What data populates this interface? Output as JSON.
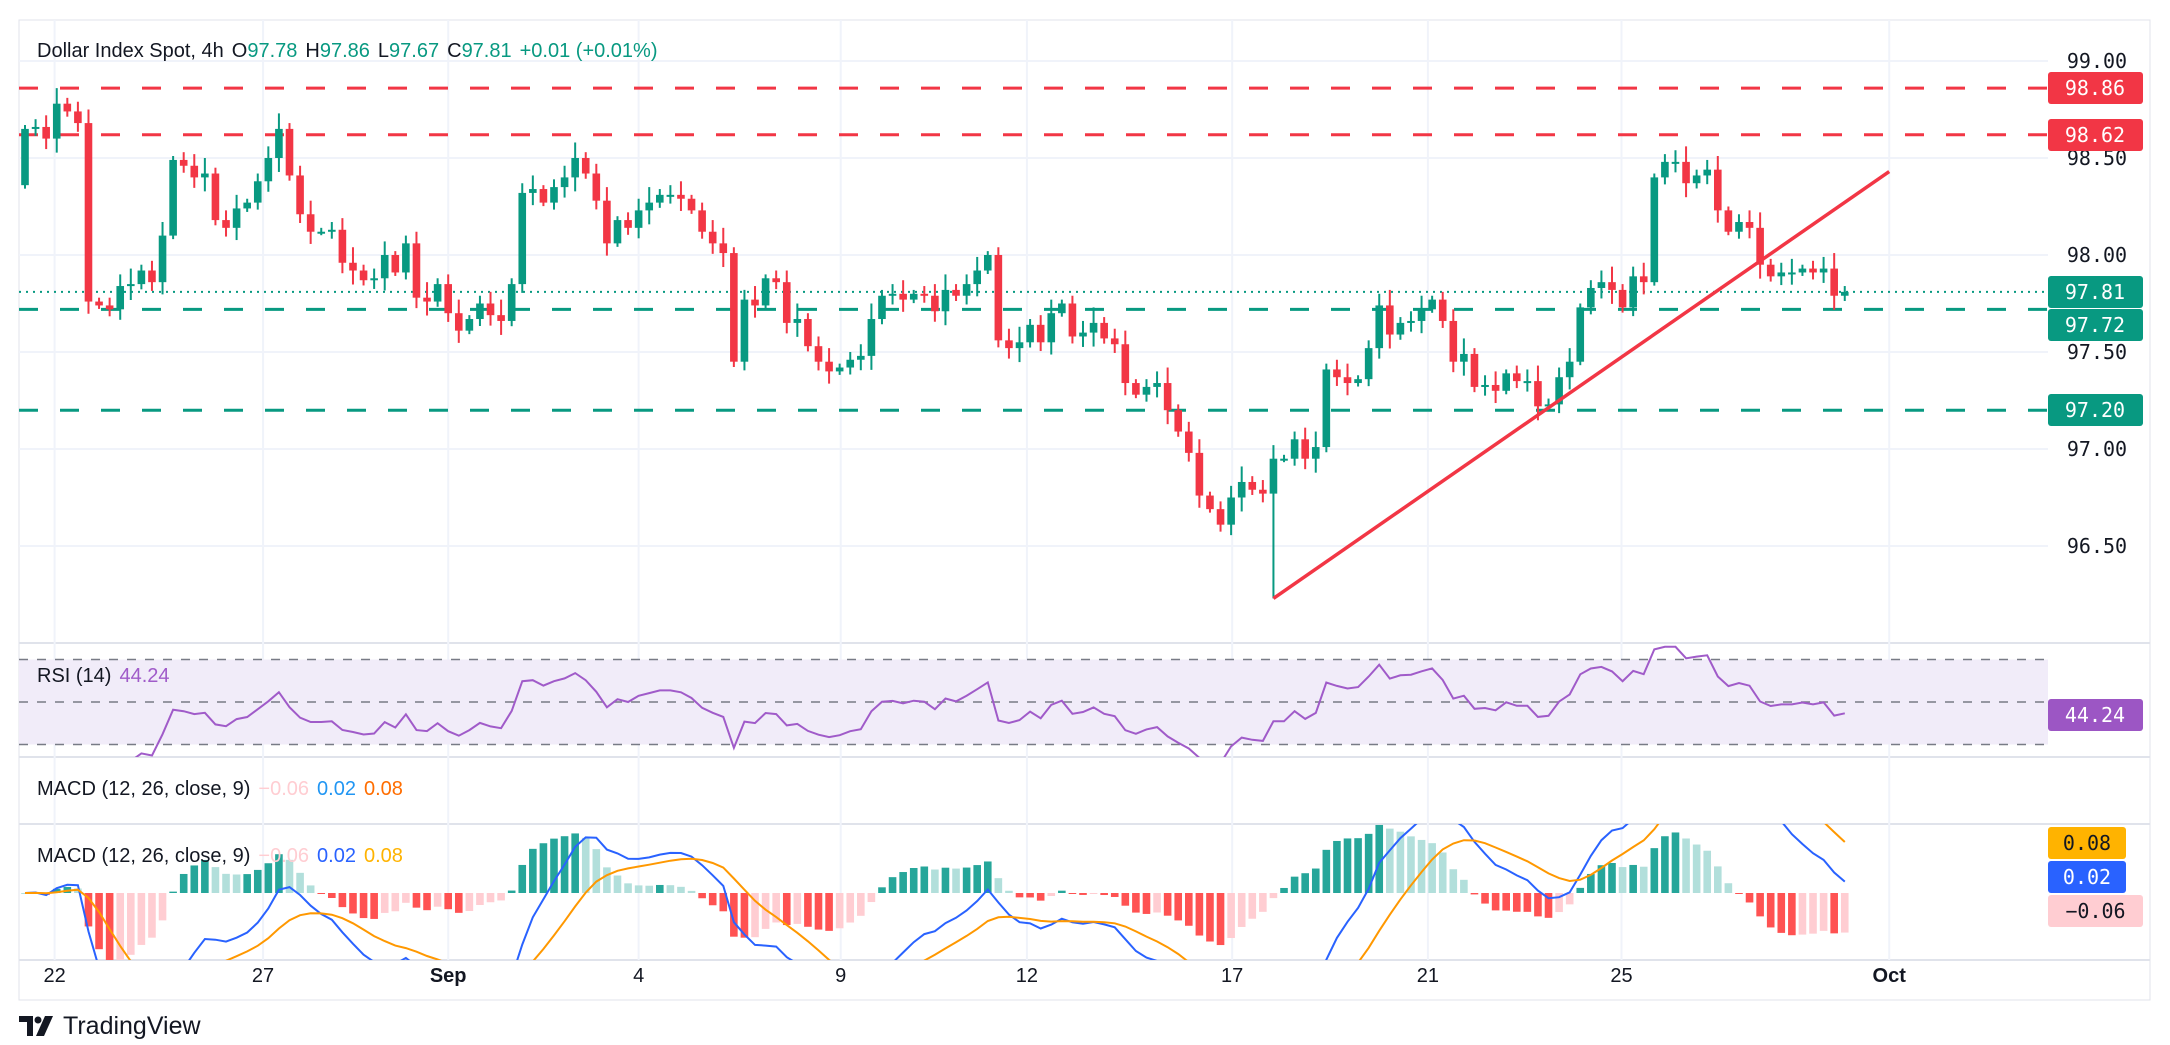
{
  "header": {
    "symbol": "Dollar Index Spot, 4h",
    "o_label": "O",
    "open": "97.78",
    "h_label": "H",
    "high": "97.86",
    "l_label": "L",
    "low": "97.67",
    "c_label": "C",
    "close": "97.81",
    "change": "+0.01 (+0.01%)"
  },
  "rsi": {
    "label": "RSI (14)",
    "value": "44.24",
    "badge": "44.24",
    "levels": [
      70,
      50,
      30
    ]
  },
  "macd_legend_1": {
    "label": "MACD (12, 26, close, 9)",
    "hist": "−0.06",
    "macd": "0.02",
    "signal": "0.08"
  },
  "macd_legend_2": {
    "label": "MACD (12, 26, close, 9)",
    "hist": "−0.06",
    "macd": "0.02",
    "signal": "0.08"
  },
  "macd_badges": {
    "signal": "0.08",
    "macd": "0.02",
    "hist": "−0.06"
  },
  "branding": {
    "name": "TradingView"
  },
  "colors": {
    "up": "#089981",
    "down": "#f23645",
    "rsi": "#a05bc9",
    "macd": "#2962ff",
    "signal": "#ff9800",
    "signal_badge": "#ffb300"
  },
  "chart_data": {
    "type": "candlestick",
    "title": "Dollar Index Spot, 4h",
    "ylim": [
      96.0,
      99.0
    ],
    "y_ticks": [
      "99.00",
      "98.50",
      "98.00",
      "97.50",
      "97.00",
      "96.50"
    ],
    "x_ticks": [
      "22",
      "27",
      "Sep",
      "4",
      "9",
      "12",
      "17",
      "21",
      "25",
      "Oct"
    ],
    "first_open": 98.36,
    "closes": [
      98.65,
      98.66,
      98.6,
      98.78,
      98.74,
      98.68,
      97.76,
      97.74,
      97.72,
      97.84,
      97.85,
      97.92,
      97.86,
      98.1,
      98.49,
      98.46,
      98.4,
      98.42,
      98.18,
      98.14,
      98.24,
      98.27,
      98.38,
      98.5,
      98.65,
      98.41,
      98.21,
      98.12,
      98.12,
      98.13,
      97.96,
      97.92,
      97.87,
      97.88,
      98.0,
      97.91,
      98.06,
      97.78,
      97.76,
      97.85,
      97.7,
      97.61,
      97.67,
      97.75,
      97.69,
      97.66,
      97.85,
      98.32,
      98.34,
      98.27,
      98.35,
      98.4,
      98.5,
      98.42,
      98.28,
      98.06,
      98.18,
      98.14,
      98.23,
      98.27,
      98.31,
      98.31,
      98.29,
      98.23,
      98.12,
      98.06,
      98.01,
      97.45,
      97.77,
      97.74,
      97.88,
      97.86,
      97.65,
      97.67,
      97.53,
      97.45,
      97.4,
      97.42,
      97.46,
      97.48,
      97.67,
      97.79,
      97.8,
      97.77,
      97.8,
      97.79,
      97.71,
      97.82,
      97.79,
      97.85,
      97.92,
      98.0,
      97.56,
      97.52,
      97.55,
      97.64,
      97.55,
      97.7,
      97.75,
      97.58,
      97.6,
      97.65,
      97.57,
      97.54,
      97.34,
      97.28,
      97.32,
      97.34,
      97.2,
      97.09,
      96.98,
      96.76,
      96.69,
      96.61,
      96.75,
      96.83,
      96.79,
      96.77,
      96.95,
      96.95,
      97.05,
      96.95,
      97.01,
      97.41,
      97.37,
      97.34,
      97.36,
      97.52,
      97.74,
      97.59,
      97.65,
      97.66,
      97.72,
      97.77,
      97.66,
      97.45,
      97.49,
      97.32,
      97.33,
      97.3,
      97.39,
      97.35,
      97.35,
      97.22,
      97.23,
      97.37,
      97.45,
      97.73,
      97.83,
      97.86,
      97.82,
      97.73,
      97.89,
      97.86,
      98.4,
      98.48,
      98.48,
      98.37,
      98.41,
      98.44,
      98.23,
      98.12,
      98.17,
      98.14,
      97.95,
      97.89,
      97.91,
      97.91,
      97.93,
      97.91,
      97.93,
      97.79,
      97.81
    ],
    "levels": [
      {
        "price": 98.86,
        "label": "98.86",
        "color": "#f23645",
        "style": "dashed"
      },
      {
        "price": 98.62,
        "label": "98.62",
        "color": "#f23645",
        "style": "dashed"
      },
      {
        "price": 97.81,
        "label": "97.81",
        "color": "#089981",
        "style": "dotted"
      },
      {
        "price": 97.72,
        "label": "97.72",
        "color": "#089981",
        "style": "dashed"
      },
      {
        "price": 97.2,
        "label": "97.20",
        "color": "#089981",
        "style": "dashed"
      }
    ],
    "trendline": {
      "start_price": 96.23,
      "end_price": 98.43,
      "color": "#f23645"
    }
  }
}
